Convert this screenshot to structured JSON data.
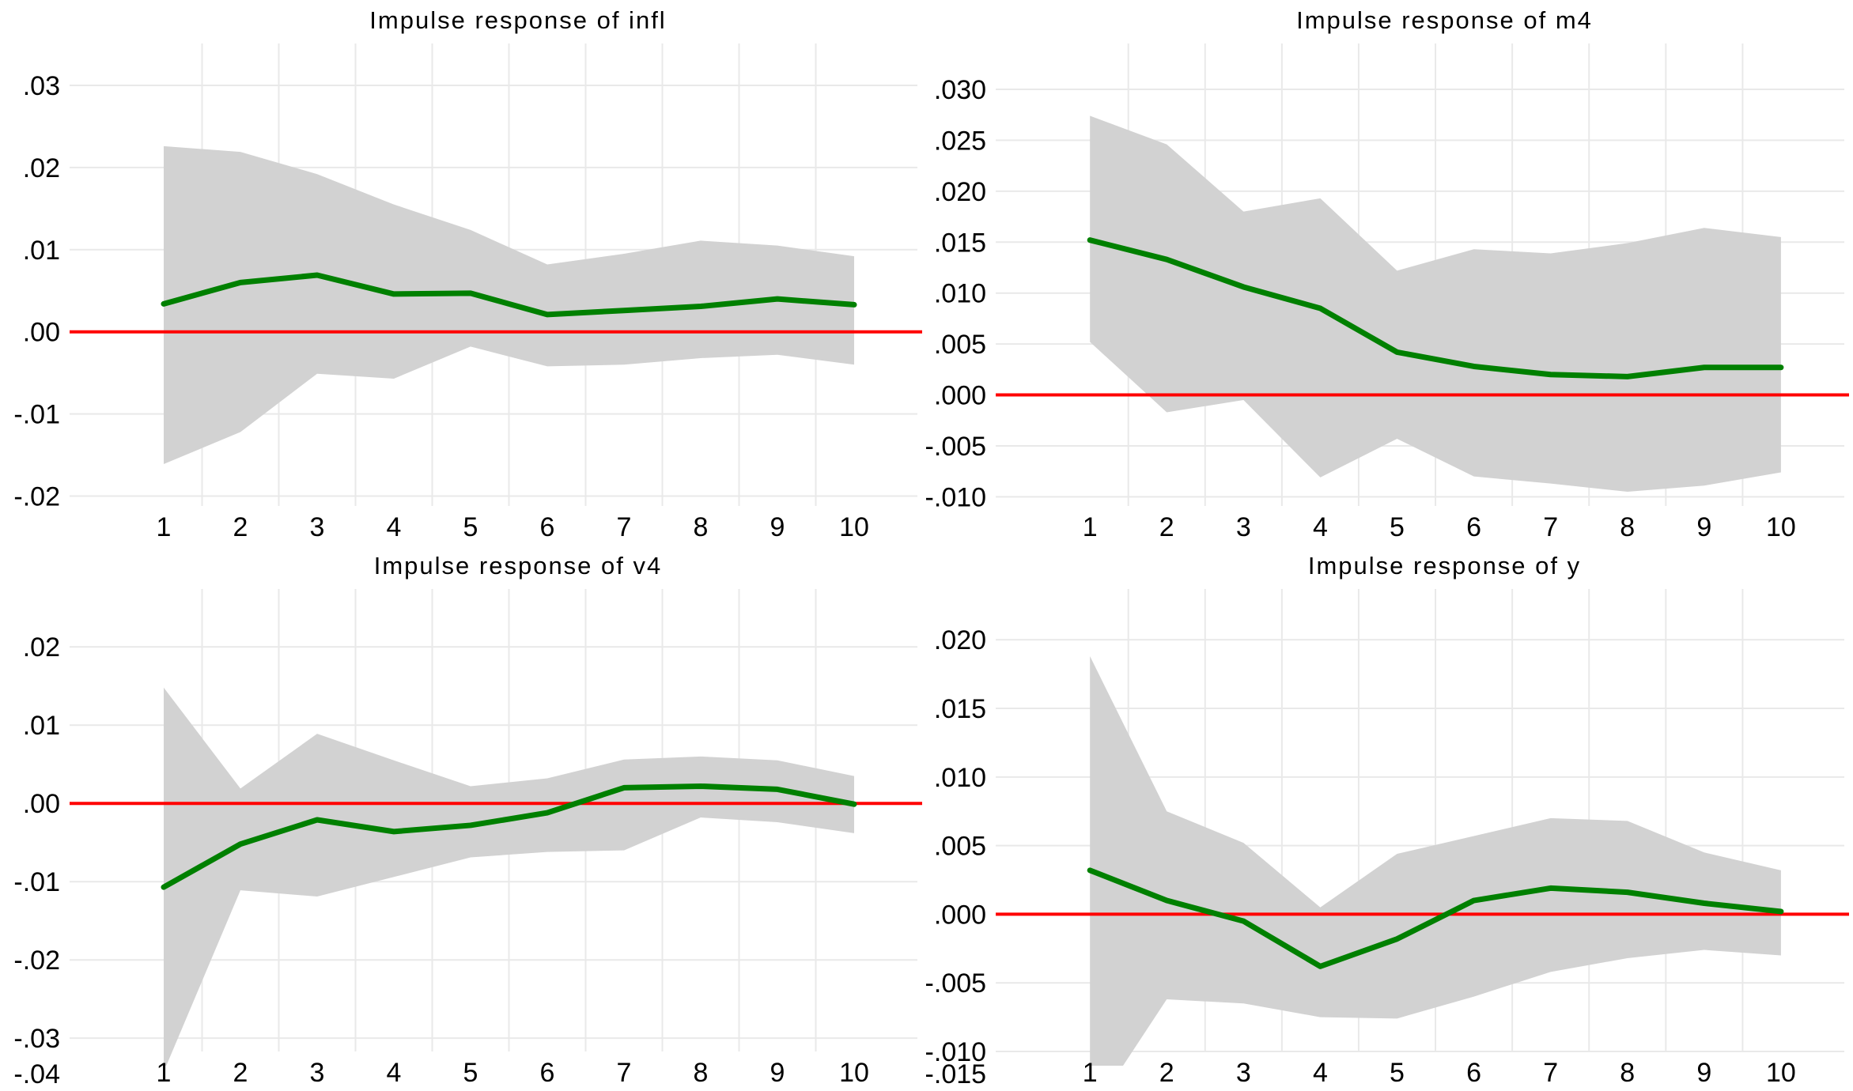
{
  "window_title": "Impulse response functions (VAR)",
  "colors": {
    "background": "#ffffff",
    "irf_line": "#008000",
    "zero_line": "#ff0000",
    "ci_band": "#d2d2d2",
    "gridline": "#e9e9e9",
    "text": "#000000"
  },
  "chart_data": [
    {
      "type": "area",
      "id": "infl",
      "title": "Impulse response of infl",
      "x": [
        1,
        2,
        3,
        4,
        5,
        6,
        7,
        8,
        9,
        10
      ],
      "xtick_labels": [
        "1",
        "2",
        "3",
        "4",
        "5",
        "6",
        "7",
        "8",
        "9",
        "10"
      ],
      "yticks": [
        {
          "label": ".03",
          "value": 0.03
        },
        {
          "label": ".02",
          "value": 0.02
        },
        {
          "label": ".01",
          "value": 0.01
        },
        {
          "label": ".00",
          "value": 0.0
        },
        {
          "label": "-.01",
          "value": -0.01
        },
        {
          "label": "-.02",
          "value": -0.02
        }
      ],
      "ylim": [
        -0.0212,
        0.0351
      ],
      "zero_line": 0,
      "grid": "on",
      "legend": "none",
      "series": [
        {
          "name": "irf",
          "values": [
            0.0034,
            0.006,
            0.0069,
            0.0046,
            0.0047,
            0.0021,
            0.0026,
            0.0031,
            0.004,
            0.0033
          ]
        },
        {
          "name": "ci_upper",
          "values": [
            0.0226,
            0.0219,
            0.0192,
            0.0155,
            0.0124,
            0.0082,
            0.0095,
            0.0111,
            0.0105,
            0.0092
          ]
        },
        {
          "name": "ci_lower",
          "values": [
            -0.0161,
            -0.0122,
            -0.0051,
            -0.0057,
            -0.0018,
            -0.0042,
            -0.004,
            -0.0032,
            -0.0028,
            -0.004
          ]
        }
      ]
    },
    {
      "type": "area",
      "id": "m4",
      "title": "Impulse response of m4",
      "x": [
        1,
        2,
        3,
        4,
        5,
        6,
        7,
        8,
        9,
        10
      ],
      "xtick_labels": [
        "1",
        "2",
        "3",
        "4",
        "5",
        "6",
        "7",
        "8",
        "9",
        "10"
      ],
      "yticks": [
        {
          "label": ".030",
          "value": 0.03
        },
        {
          "label": ".025",
          "value": 0.025
        },
        {
          "label": ".020",
          "value": 0.02
        },
        {
          "label": ".015",
          "value": 0.015
        },
        {
          "label": ".010",
          "value": 0.01
        },
        {
          "label": ".005",
          "value": 0.005
        },
        {
          "label": ".000",
          "value": 0.0
        },
        {
          "label": "-.005",
          "value": -0.005
        },
        {
          "label": "-.010",
          "value": -0.01
        }
      ],
      "ylim": [
        -0.0109,
        0.0345
      ],
      "zero_line": 0,
      "grid": "on",
      "legend": "none",
      "series": [
        {
          "name": "irf",
          "values": [
            0.0152,
            0.0133,
            0.0106,
            0.0085,
            0.0042,
            0.0028,
            0.002,
            0.0018,
            0.0027,
            0.0027
          ]
        },
        {
          "name": "ci_upper",
          "values": [
            0.0274,
            0.0246,
            0.018,
            0.0193,
            0.0122,
            0.0143,
            0.0139,
            0.0149,
            0.0164,
            0.0155
          ]
        },
        {
          "name": "ci_lower",
          "values": [
            0.0052,
            -0.0017,
            -0.0005,
            -0.0081,
            -0.0043,
            -0.008,
            -0.0087,
            -0.0095,
            -0.0089,
            -0.0076
          ]
        }
      ]
    },
    {
      "type": "area",
      "id": "v4",
      "title": "Impulse response of v4",
      "x": [
        1,
        2,
        3,
        4,
        5,
        6,
        7,
        8,
        9,
        10
      ],
      "xtick_labels": [
        "1",
        "2",
        "3",
        "4",
        "5",
        "6",
        "7",
        "8",
        "9",
        "10"
      ],
      "yticks": [
        {
          "label": ".02",
          "value": 0.02
        },
        {
          "label": ".01",
          "value": 0.01
        },
        {
          "label": ".00",
          "value": 0.0
        },
        {
          "label": "-.01",
          "value": -0.01
        },
        {
          "label": "-.02",
          "value": -0.02
        },
        {
          "label": "-.03",
          "value": -0.03
        },
        {
          "label": "-.04",
          "value": -0.04
        }
      ],
      "ylim": [
        -0.0317,
        0.0274
      ],
      "zero_line": 0,
      "grid": "on",
      "legend": "none",
      "series": [
        {
          "name": "irf",
          "values": [
            -0.0107,
            -0.0052,
            -0.0021,
            -0.0036,
            -0.0028,
            -0.0012,
            0.002,
            0.0022,
            0.0018,
            -0.0001
          ]
        },
        {
          "name": "ci_upper",
          "values": [
            0.0148,
            0.0019,
            0.0089,
            0.0055,
            0.0022,
            0.0032,
            0.0056,
            0.006,
            0.0055,
            0.0035
          ]
        },
        {
          "name": "ci_lower",
          "values": [
            -0.0343,
            -0.0111,
            -0.0119,
            -0.0094,
            -0.0069,
            -0.0062,
            -0.006,
            -0.0018,
            -0.0024,
            -0.0038
          ]
        }
      ]
    },
    {
      "type": "area",
      "id": "y",
      "title": "Impulse response of y",
      "x": [
        1,
        2,
        3,
        4,
        5,
        6,
        7,
        8,
        9,
        10
      ],
      "xtick_labels": [
        "1",
        "2",
        "3",
        "4",
        "5",
        "6",
        "7",
        "8",
        "9",
        "10"
      ],
      "yticks": [
        {
          "label": ".020",
          "value": 0.02
        },
        {
          "label": ".015",
          "value": 0.015
        },
        {
          "label": ".010",
          "value": 0.01
        },
        {
          "label": ".005",
          "value": 0.005
        },
        {
          "label": ".000",
          "value": 0.0
        },
        {
          "label": "-.005",
          "value": -0.005
        },
        {
          "label": "-.010",
          "value": -0.01
        },
        {
          "label": "-.015",
          "value": -0.015
        }
      ],
      "ylim": [
        -0.01,
        0.0237
      ],
      "zero_line": 0,
      "grid": "on",
      "legend": "none",
      "series": [
        {
          "name": "irf",
          "values": [
            0.0032,
            0.001,
            -0.0005,
            -0.0038,
            -0.0018,
            0.001,
            0.0019,
            0.0016,
            0.0008,
            0.0002
          ]
        },
        {
          "name": "ci_upper",
          "values": [
            0.0188,
            0.0075,
            0.0052,
            0.0005,
            0.0044,
            0.0057,
            0.007,
            0.0068,
            0.0045,
            0.0032
          ]
        },
        {
          "name": "ci_lower",
          "values": [
            -0.0147,
            -0.0062,
            -0.0065,
            -0.0075,
            -0.0076,
            -0.006,
            -0.0042,
            -0.0032,
            -0.0026,
            -0.003
          ]
        }
      ]
    }
  ]
}
